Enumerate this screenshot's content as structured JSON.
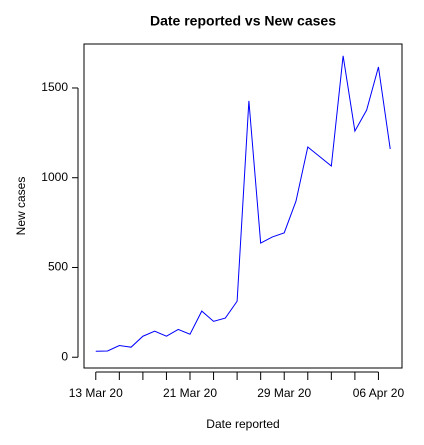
{
  "chart_data": {
    "type": "line",
    "title": "Date reported vs New cases",
    "xlabel": "Date reported",
    "ylabel": "New cases",
    "x": [
      "2020-03-13",
      "2020-03-14",
      "2020-03-15",
      "2020-03-16",
      "2020-03-17",
      "2020-03-18",
      "2020-03-19",
      "2020-03-20",
      "2020-03-21",
      "2020-03-22",
      "2020-03-23",
      "2020-03-24",
      "2020-03-25",
      "2020-03-26",
      "2020-03-27",
      "2020-03-28",
      "2020-03-29",
      "2020-03-30",
      "2020-03-31",
      "2020-04-01",
      "2020-04-02",
      "2020-04-03",
      "2020-04-04",
      "2020-04-05",
      "2020-04-06",
      "2020-04-07"
    ],
    "series": [
      {
        "name": "New cases",
        "color": "#0000ff",
        "values": [
          33,
          35,
          65,
          56,
          117,
          145,
          117,
          155,
          128,
          257,
          200,
          218,
          312,
          1428,
          636,
          670,
          693,
          870,
          1171,
          1118,
          1065,
          1679,
          1260,
          1377,
          1617,
          1160
        ]
      }
    ],
    "xlim": [
      "2020-03-12",
      "2020-04-08"
    ],
    "xticks": [
      {
        "value": "2020-03-13",
        "label": "13 Mar 20"
      },
      {
        "value": "2020-03-21",
        "label": "21 Mar 20"
      },
      {
        "value": "2020-03-29",
        "label": "29 Mar 20"
      },
      {
        "value": "2020-04-06",
        "label": "06 Apr 20"
      }
    ],
    "xminorticks": [
      "2020-03-15",
      "2020-03-17",
      "2020-03-19",
      "2020-03-23",
      "2020-03-25",
      "2020-03-27",
      "2020-03-31",
      "2020-04-02",
      "2020-04-04"
    ],
    "ylim": [
      -60,
      1745
    ],
    "yticks": [
      0,
      500,
      1000,
      1500
    ]
  }
}
